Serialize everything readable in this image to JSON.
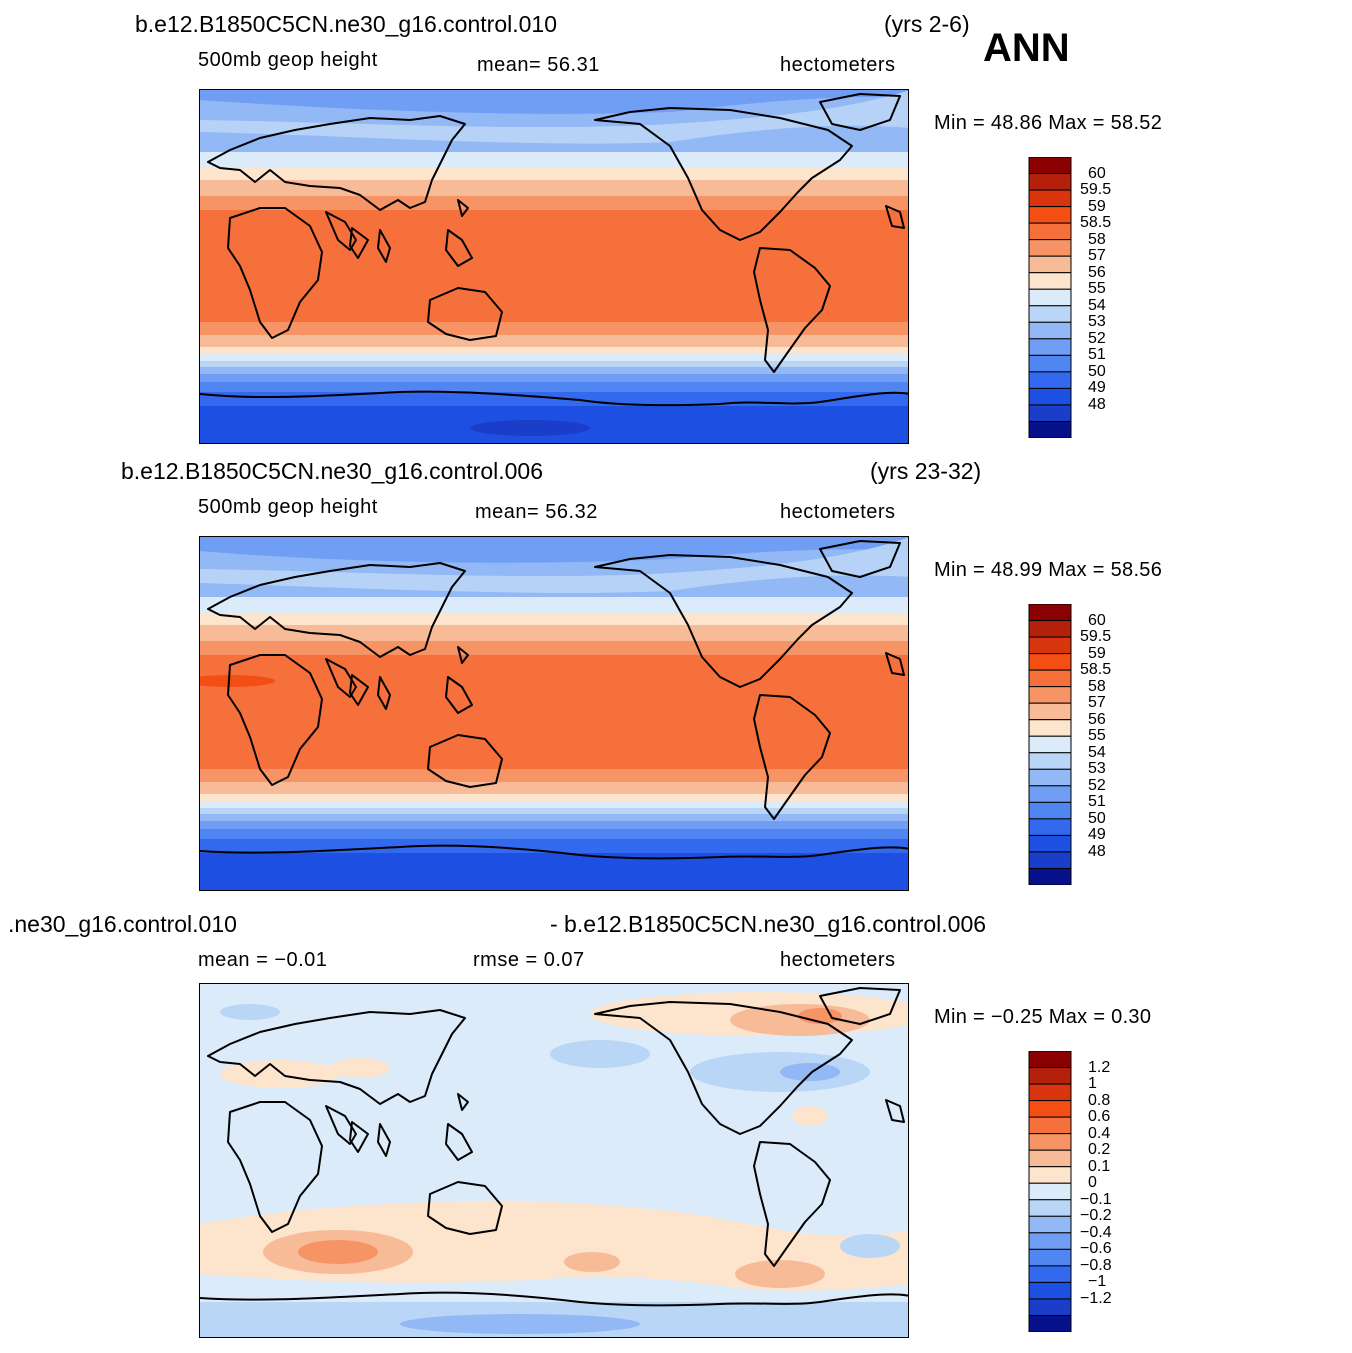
{
  "annotation": "ANN",
  "panels": [
    {
      "case_title": "b.e12.B1850C5CN.ne30_g16.control.010",
      "years": "(yrs 2-6)",
      "variable": "500mb  geop  height",
      "stat_label": "mean=   56.31",
      "units": "hectometers",
      "minmax": "Min =    48.86  Max =    58.52",
      "colorbar": {
        "labels": [
          "60",
          "59.5",
          "59",
          "58.5",
          "58",
          "57",
          "56",
          "55",
          "54",
          "53",
          "52",
          "51",
          "50",
          "49",
          "48"
        ],
        "colors": [
          "#8b0000",
          "#b4200a",
          "#d8340d",
          "#f34e14",
          "#f6703c",
          "#f79465",
          "#f8bb97",
          "#fde4cd",
          "#dcebfa",
          "#bad6f7",
          "#92b8f5",
          "#6f9ef4",
          "#4f86f2",
          "#3369ee",
          "#1d4fe3",
          "#1a3ec9",
          "#07118b"
        ]
      }
    },
    {
      "case_title": "b.e12.B1850C5CN.ne30_g16.control.006",
      "years": "(yrs 23-32)",
      "variable": "500mb  geop  height",
      "stat_label": "mean=   56.32",
      "units": "hectometers",
      "minmax": "Min =    48.99  Max =    58.56",
      "colorbar": {
        "labels": [
          "60",
          "59.5",
          "59",
          "58.5",
          "58",
          "57",
          "56",
          "55",
          "54",
          "53",
          "52",
          "51",
          "50",
          "49",
          "48"
        ],
        "colors": [
          "#8b0000",
          "#b4200a",
          "#d8340d",
          "#f34e14",
          "#f6703c",
          "#f79465",
          "#f8bb97",
          "#fde4cd",
          "#dcebfa",
          "#bad6f7",
          "#92b8f5",
          "#6f9ef4",
          "#4f86f2",
          "#3369ee",
          "#1d4fe3",
          "#1a3ec9",
          "#07118b"
        ]
      }
    },
    {
      "case_title": ".ne30_g16.control.010",
      "case_title_right": "- b.e12.B1850C5CN.ne30_g16.control.006",
      "variable": "mean  =    −0.01",
      "stat_label": "rmse  =     0.07",
      "units": "hectometers",
      "minmax": "Min =   −0.25  Max =     0.30",
      "colorbar": {
        "labels": [
          "1.2",
          "1",
          "0.8",
          "0.6",
          "0.4",
          "0.2",
          "0.1",
          "0",
          "−0.1",
          "−0.2",
          "−0.4",
          "−0.6",
          "−0.8",
          "−1",
          "−1.2"
        ],
        "colors": [
          "#8b0000",
          "#b4200a",
          "#d8340d",
          "#f34e14",
          "#f6703c",
          "#f79465",
          "#f8bb97",
          "#fde4cd",
          "#dcebfa",
          "#bad6f7",
          "#92b8f5",
          "#6f9ef4",
          "#4f86f2",
          "#3369ee",
          "#1d4fe3",
          "#1a3ec9",
          "#07118b"
        ]
      }
    }
  ]
}
